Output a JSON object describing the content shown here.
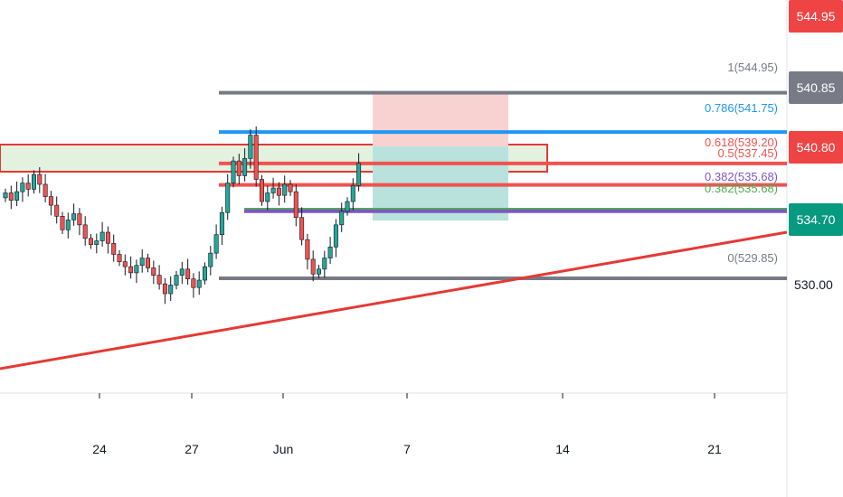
{
  "chart_data": {
    "type": "candlestick",
    "x_ticks": [
      "24",
      "27",
      "Jun",
      "7",
      "14",
      "21"
    ],
    "price_axis_labels": [
      "530.00"
    ],
    "price_tags": [
      {
        "value": "544.95",
        "color": "#ef4444"
      },
      {
        "value": "540.85",
        "color": "#787b86"
      },
      {
        "value": "540.80",
        "color": "#ef4444"
      },
      {
        "value": "534.70",
        "color": "#089981"
      }
    ],
    "fib_levels": [
      {
        "label": "1(544.95)",
        "price": 544.95,
        "color": "#787b86"
      },
      {
        "label": "0.786(541.75)",
        "price": 541.75,
        "color": "#2196f3"
      },
      {
        "label": "0.618(539.20)",
        "price": 539.2,
        "color": "#ef5350"
      },
      {
        "label": "0.5(537.45)",
        "price": 537.45,
        "color": "#ef5350"
      },
      {
        "label": "0.382(535.68)",
        "price": 535.68,
        "color": "#4caf50"
      },
      {
        "label": "0.382(535.68)",
        "price": 535.68,
        "color": "#7e57c2"
      },
      {
        "label": "0(529.85)",
        "price": 529.85,
        "color": "#787b86"
      }
    ],
    "colors": {
      "up": "#26a69a",
      "down": "#ef5350",
      "trendline": "#e53935",
      "stop_zone": "#f8d2d0",
      "target_zone": "#b9e2dd",
      "support_band": "#e3f1df"
    }
  }
}
